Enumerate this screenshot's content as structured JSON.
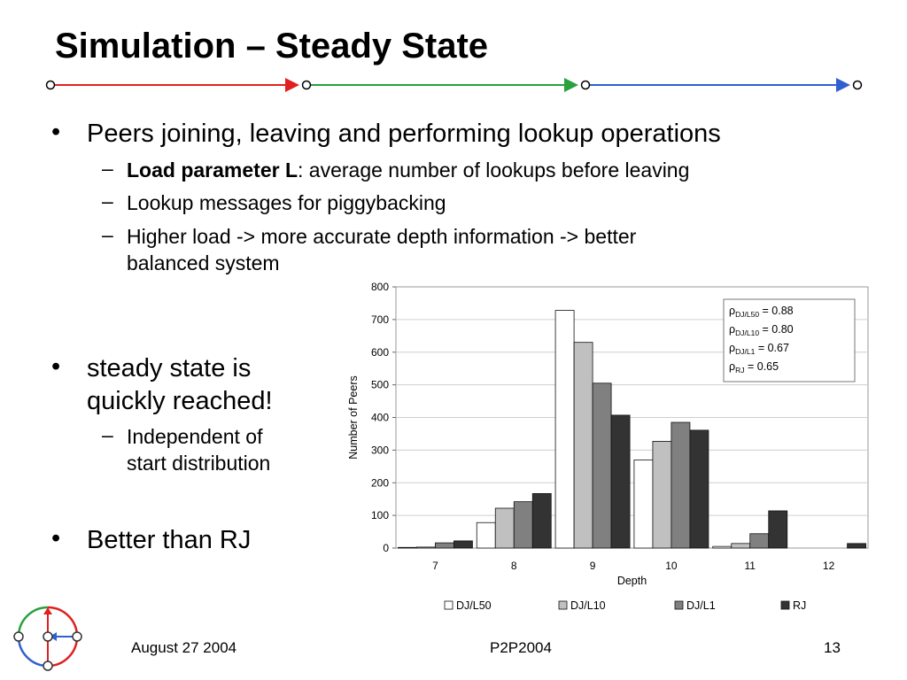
{
  "slide": {
    "title": "Simulation – Steady State",
    "bullets_top": {
      "main": "Peers joining, leaving and performing lookup operations",
      "subs": [
        {
          "bold": "Load parameter L",
          "rest": ": average number of lookups before leaving"
        },
        {
          "text": "Lookup messages for piggybacking"
        },
        {
          "line1": "Higher load -> more accurate depth information -> better",
          "line2": "balanced system"
        }
      ]
    },
    "bullet_steady": {
      "line1": "steady state is",
      "line2": "quickly reached!",
      "sub_line1": "Independent of",
      "sub_line2": "start distribution"
    },
    "bullet_better": "Better than RJ",
    "bullet_glyph": "•",
    "dash_glyph": "–"
  },
  "footer": {
    "date": "August 27 2004",
    "conference": "P2P2004",
    "page": "13"
  },
  "colors": {
    "rule_red": "#e02020",
    "rule_green": "#2aa040",
    "rule_blue": "#3060d0",
    "dj_l50": "#ffffff",
    "dj_l10": "#c0c0c0",
    "dj_l1": "#808080",
    "rj": "#333333"
  },
  "chart_data": {
    "type": "bar",
    "categories": [
      "7",
      "8",
      "9",
      "10",
      "11",
      "12"
    ],
    "series": [
      {
        "name": "DJ/L50",
        "values": [
          2,
          78,
          728,
          270,
          5,
          0
        ]
      },
      {
        "name": "DJ/L10",
        "values": [
          3,
          122,
          630,
          327,
          14,
          0
        ]
      },
      {
        "name": "DJ/L1",
        "values": [
          16,
          142,
          505,
          385,
          44,
          0
        ]
      },
      {
        "name": "RJ",
        "values": [
          22,
          167,
          407,
          361,
          114,
          14
        ]
      }
    ],
    "xlabel": "Depth",
    "ylabel": "Number of Peers",
    "ylim": [
      0,
      800
    ],
    "yticks": [
      0,
      100,
      200,
      300,
      400,
      500,
      600,
      700,
      800
    ],
    "grid": true,
    "legend_position": "bottom",
    "annotation_box": {
      "position": "top-right",
      "symbol": "ρ",
      "entries": [
        {
          "sub": "DJ/L50",
          "value": "= 0.88"
        },
        {
          "sub": "DJ/L10",
          "value": "= 0.80"
        },
        {
          "sub": "DJ/L1",
          "value": "= 0.67"
        },
        {
          "sub": "RJ",
          "value": "= 0.65"
        }
      ]
    }
  }
}
